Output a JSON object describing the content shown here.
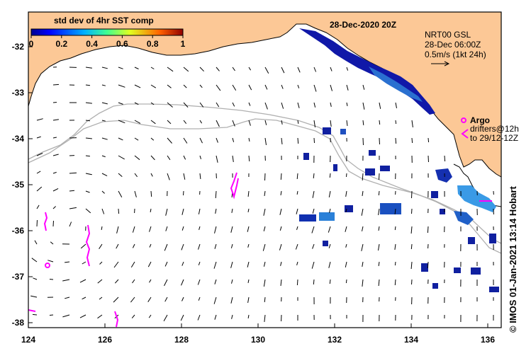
{
  "title": "28-Dec-2020 20Z",
  "colorbar": {
    "title": "std dev of 4hr SST comp",
    "ticks": [
      "0",
      "0.2",
      "0.4",
      "0.6",
      "0.8",
      "1"
    ]
  },
  "velocity_legend": {
    "line1": "NRT00 GSL",
    "line2": "28-Dec 06:00Z",
    "line3": "0.5m/s (1kt 24h)"
  },
  "argo_legend": {
    "argo_label": "Argo",
    "drifters_line1": "drifters@12h",
    "drifters_line2": "to 29/12-12Z"
  },
  "credit": "© IMOS 01-Jan-2021 13:14 Hobart",
  "axes": {
    "lon_labels": [
      "124",
      "126",
      "128",
      "130",
      "132",
      "134",
      "136"
    ],
    "lat_labels": [
      "-32",
      "-33",
      "-34",
      "-35",
      "-36",
      "-37",
      "-38"
    ]
  },
  "colors": {
    "land": "#FCC896",
    "drifter": "#FF00FF",
    "sst_low": "#1010A0",
    "sst_mid": "#3090E0"
  }
}
